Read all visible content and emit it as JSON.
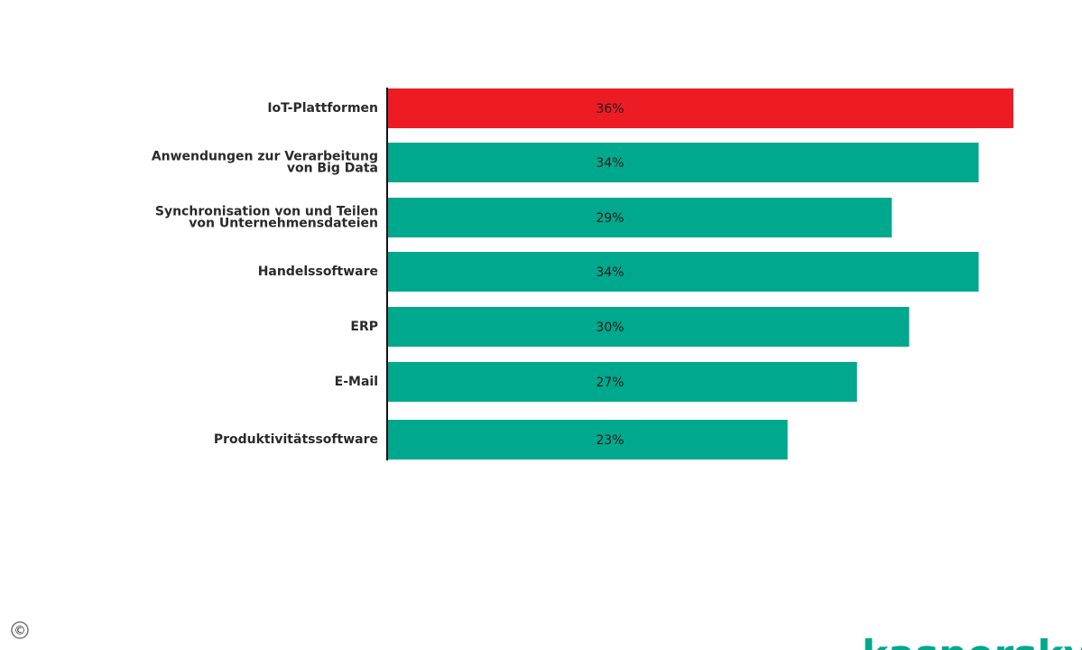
{
  "chart_data": {
    "type": "bar",
    "orientation": "horizontal",
    "categories": [
      "IoT-Plattformen",
      "Anwendungen zur Verarbeitung\nvon Big Data",
      "Synchronisation von und Teilen\nvon Unternehmensdateien",
      "Handelssoftware",
      "ERP",
      "E-Mail",
      "Produktivitätssoftware"
    ],
    "values": [
      36,
      34,
      29,
      34,
      30,
      27,
      23
    ],
    "value_labels": [
      "36%",
      "34%",
      "29%",
      "34%",
      "30%",
      "27%",
      "23%"
    ],
    "colors": [
      "#ed1c24",
      "#00a88e",
      "#00a88e",
      "#00a88e",
      "#00a88e",
      "#00a88e",
      "#00a88e"
    ]
  },
  "copyright": "©",
  "logo": "kaspersky"
}
